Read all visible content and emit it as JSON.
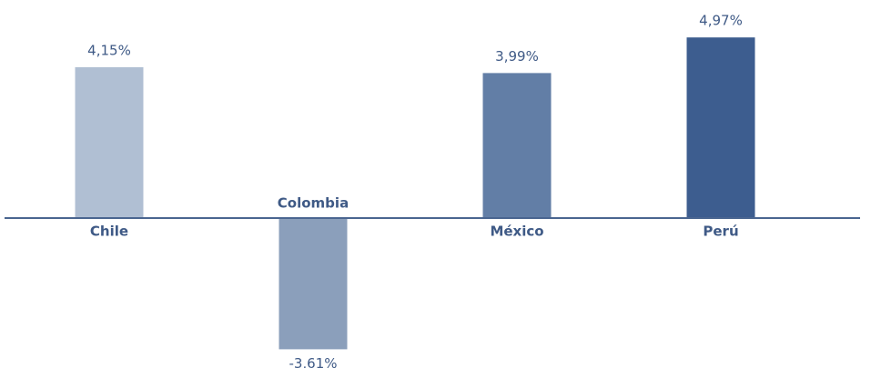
{
  "chart_data": {
    "type": "bar",
    "categories": [
      "Chile",
      "Colombia",
      "México",
      "Perú"
    ],
    "values": [
      4.15,
      -3.61,
      3.99,
      4.97
    ],
    "value_labels": [
      "4,15%",
      "-3,61%",
      "3,99%",
      "4,97%"
    ],
    "colors": [
      "#b0bfd3",
      "#8b9fbb",
      "#627ea6",
      "#3d5d8f"
    ]
  }
}
